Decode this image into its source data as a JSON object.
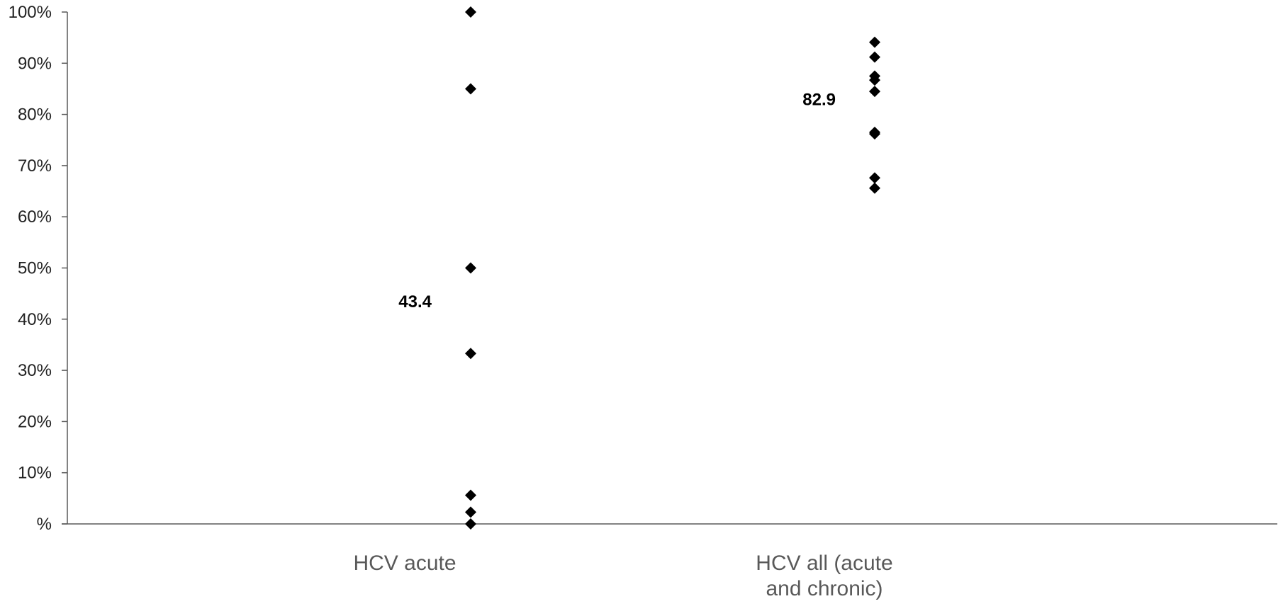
{
  "chart_data": {
    "type": "scatter",
    "title": "",
    "xlabel": "",
    "ylabel": "",
    "ylim": [
      0,
      100
    ],
    "grid": false,
    "legend": "none",
    "y_ticks": [
      {
        "value": 0,
        "label": "%"
      },
      {
        "value": 10,
        "label": "10%"
      },
      {
        "value": 20,
        "label": "20%"
      },
      {
        "value": 30,
        "label": "30%"
      },
      {
        "value": 40,
        "label": "40%"
      },
      {
        "value": 50,
        "label": "50%"
      },
      {
        "value": 60,
        "label": "60%"
      },
      {
        "value": 70,
        "label": "70%"
      },
      {
        "value": 80,
        "label": "80%"
      },
      {
        "value": 90,
        "label": "90%"
      },
      {
        "value": 100,
        "label": "100%"
      }
    ],
    "categories": [
      {
        "lines": [
          "HCV acute"
        ]
      },
      {
        "lines": [
          "HCV all (acute",
          "and chronic)"
        ]
      }
    ],
    "series": [
      {
        "category_index": 0,
        "values": [
          100,
          85,
          50,
          33.3,
          5.6,
          2.3,
          0
        ],
        "mean_label": "43.4",
        "mean_value": 43.4
      },
      {
        "category_index": 1,
        "values": [
          94.1,
          91.2,
          87.5,
          86.7,
          84.5,
          76.5,
          76.2,
          67.6,
          65.6
        ],
        "mean_label": "82.9",
        "mean_value": 82.9
      }
    ],
    "marker": "diamond",
    "marker_color": "#000000",
    "axis_color": "#595959"
  }
}
